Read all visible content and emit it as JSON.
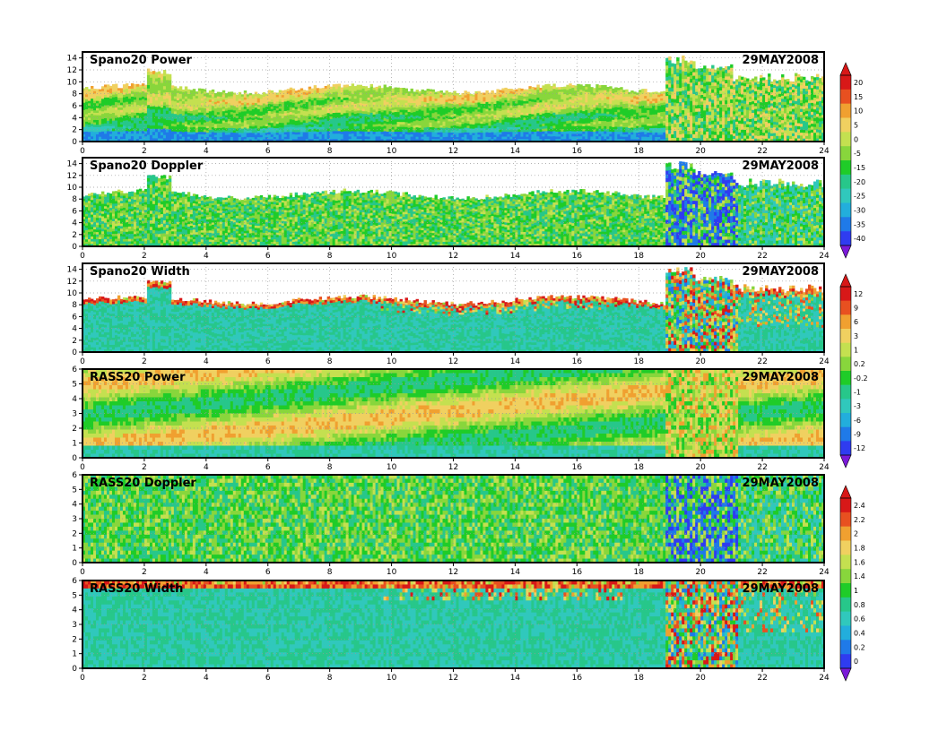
{
  "chart_data": {
    "type": "heatmap",
    "x_ticks": [
      "0",
      "2",
      "4",
      "6",
      "8",
      "10",
      "12",
      "14",
      "16",
      "18",
      "20",
      "22",
      "24"
    ],
    "xlim": [
      0,
      24
    ],
    "panels": [
      {
        "title": "Spano20  Power",
        "date": "29MAY2008",
        "ylim": [
          0,
          15
        ],
        "y_ticks": [
          "0",
          "2",
          "4",
          "6",
          "8",
          "10",
          "12",
          "14"
        ],
        "top_base": 8.8,
        "variable": "power"
      },
      {
        "title": "Spano20  Doppler",
        "date": "29MAY2008",
        "ylim": [
          0,
          15
        ],
        "y_ticks": [
          "0",
          "2",
          "4",
          "6",
          "8",
          "10",
          "12",
          "14"
        ],
        "top_base": 8.8,
        "variable": "doppler"
      },
      {
        "title": "Spano20  Width",
        "date": "29MAY2008",
        "ylim": [
          0,
          15
        ],
        "y_ticks": [
          "0",
          "2",
          "4",
          "6",
          "8",
          "10",
          "12",
          "14"
        ],
        "top_base": 8.8,
        "variable": "width"
      },
      {
        "title": "RASS20  Power",
        "date": "29MAY2008",
        "ylim": [
          0,
          6
        ],
        "y_ticks": [
          "0",
          "1",
          "2",
          "3",
          "4",
          "5",
          "6"
        ],
        "top_base": 6,
        "variable": "power"
      },
      {
        "title": "RASS20  Doppler",
        "date": "29MAY2008",
        "ylim": [
          0,
          6
        ],
        "y_ticks": [
          "0",
          "1",
          "2",
          "3",
          "4",
          "5",
          "6"
        ],
        "top_base": 6,
        "variable": "doppler"
      },
      {
        "title": "RASS20  Width",
        "date": "29MAY2008",
        "ylim": [
          0,
          6
        ],
        "y_ticks": [
          "0",
          "1",
          "2",
          "3",
          "4",
          "5",
          "6"
        ],
        "top_base": 6,
        "variable": "width"
      }
    ],
    "colorbars": [
      {
        "panels": [
          0,
          1
        ],
        "labels": [
          "20",
          "15",
          "10",
          "5",
          "0",
          "-5",
          "-15",
          "-20",
          "-25",
          "-30",
          "-35",
          "-40"
        ]
      },
      {
        "panels": [
          2,
          3
        ],
        "labels": [
          "12",
          "9",
          "6",
          "3",
          "1",
          "0.2",
          "-0.2",
          "-1",
          "-3",
          "-6",
          "-9",
          "-12"
        ]
      },
      {
        "panels": [
          4,
          5
        ],
        "labels": [
          "2.4",
          "2.2",
          "2",
          "1.8",
          "1.6",
          "1.4",
          "1",
          "0.8",
          "0.6",
          "0.4",
          "0.2",
          "0"
        ]
      }
    ],
    "palette": [
      "#7a1ad8",
      "#6a32e6",
      "#2f3cf0",
      "#1f7ae8",
      "#22aedc",
      "#30c8bc",
      "#27c78a",
      "#1fcc28",
      "#88d63c",
      "#c4e050",
      "#f0d060",
      "#f0a030",
      "#e85020",
      "#d81818"
    ]
  }
}
